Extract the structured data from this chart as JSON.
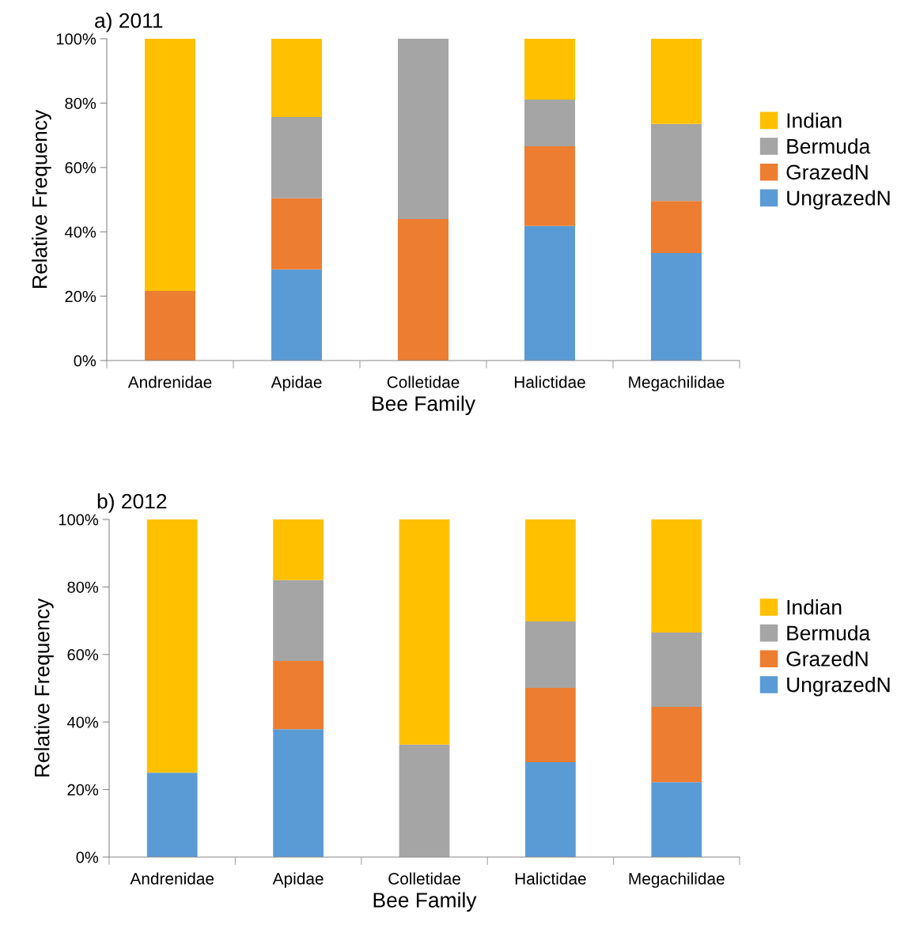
{
  "chart_data": [
    {
      "type": "bar",
      "title": "a) 2011",
      "xlabel": "Bee Family",
      "ylabel": "Relative Frequency",
      "stacked": true,
      "legend": "right",
      "grid": false,
      "categories": [
        "Andrenidae",
        "Apidae",
        "Colletidae",
        "Halictidae",
        "Megachilidae"
      ],
      "ylim": [
        0,
        100
      ],
      "yticks": [
        {
          "value": 0,
          "label": "0%"
        },
        {
          "value": 20,
          "label": "20%"
        },
        {
          "value": 40,
          "label": "40%"
        },
        {
          "value": 60,
          "label": "60%"
        },
        {
          "value": 80,
          "label": "80%"
        },
        {
          "value": 100,
          "label": "100%"
        }
      ],
      "series": [
        {
          "name": "UngrazedN",
          "color": "#5b9bd5",
          "values": [
            0,
            28.3,
            0,
            41.8,
            33.4
          ]
        },
        {
          "name": "GrazedN",
          "color": "#ed7d31",
          "values": [
            21.6,
            22.1,
            44.0,
            24.8,
            16.2
          ]
        },
        {
          "name": "Bermuda",
          "color": "#a5a5a5",
          "values": [
            0,
            25.3,
            56.0,
            14.5,
            23.9
          ]
        },
        {
          "name": "Indian",
          "color": "#ffc000",
          "values": [
            78.4,
            24.3,
            0,
            18.9,
            26.5
          ]
        }
      ]
    },
    {
      "type": "bar",
      "title": "b) 2012",
      "xlabel": "Bee Family",
      "ylabel": "Relative Frequency",
      "stacked": true,
      "legend": "right",
      "grid": false,
      "categories": [
        "Andrenidae",
        "Apidae",
        "Colletidae",
        "Halictidae",
        "Megachilidae"
      ],
      "ylim": [
        0,
        100
      ],
      "yticks": [
        {
          "value": 0,
          "label": "0%"
        },
        {
          "value": 20,
          "label": "20%"
        },
        {
          "value": 40,
          "label": "40%"
        },
        {
          "value": 60,
          "label": "60%"
        },
        {
          "value": 80,
          "label": "80%"
        },
        {
          "value": 100,
          "label": "100%"
        }
      ],
      "series": [
        {
          "name": "UngrazedN",
          "color": "#5b9bd5",
          "values": [
            25.0,
            37.9,
            0,
            28.1,
            22.2
          ]
        },
        {
          "name": "GrazedN",
          "color": "#ed7d31",
          "values": [
            0,
            20.2,
            0,
            22.0,
            22.3
          ]
        },
        {
          "name": "Bermuda",
          "color": "#a5a5a5",
          "values": [
            0,
            23.9,
            33.3,
            19.7,
            22.0
          ]
        },
        {
          "name": "Indian",
          "color": "#ffc000",
          "values": [
            75.0,
            18.0,
            66.7,
            30.2,
            33.5
          ]
        }
      ]
    }
  ]
}
